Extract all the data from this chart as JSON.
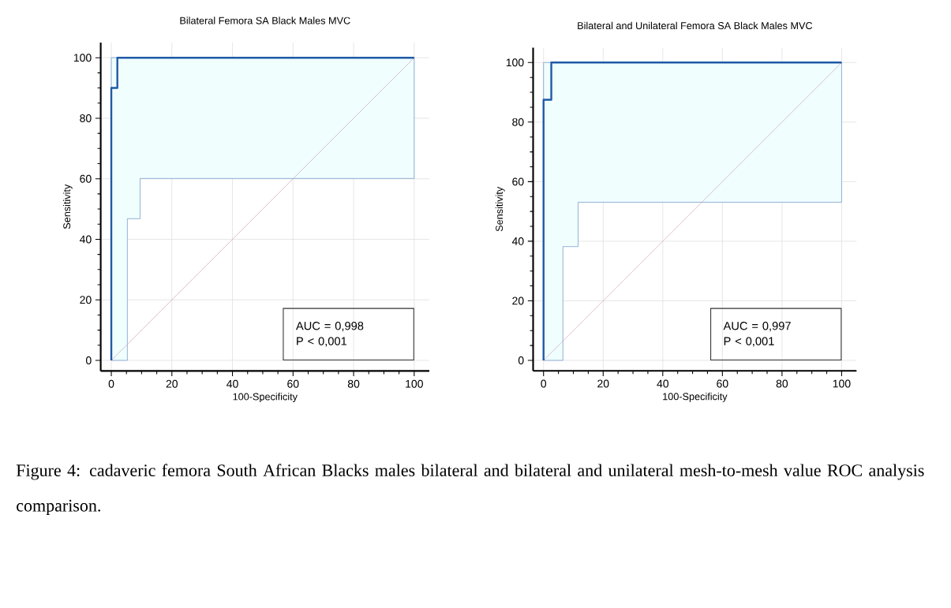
{
  "chart_data": [
    {
      "type": "line",
      "title": "Bilateral Femora SA Black Males MVC",
      "xlabel": "100-Specificity",
      "ylabel": "Sensitivity",
      "xlim": [
        -3.5,
        105
      ],
      "ylim": [
        -3.5,
        105
      ],
      "xticks": [
        0,
        20,
        40,
        60,
        80,
        100
      ],
      "yticks": [
        0,
        20,
        40,
        60,
        80,
        100
      ],
      "grid": true,
      "annotations": [
        "AUC = 0,998",
        "P < 0,001"
      ],
      "series": [
        {
          "color": "#1f5aa6",
          "x": [
            0,
            0,
            2,
            2,
            5.3,
            5.3,
            9.5,
            9.5,
            100
          ],
          "values": [
            0,
            90,
            90,
            100,
            100,
            100,
            100,
            100,
            100
          ],
          "lower": [
            0,
            0,
            0,
            0,
            0,
            46.8,
            46.8,
            60.1,
            60.1
          ],
          "upper": [
            0,
            100,
            100,
            100,
            100,
            100,
            100,
            100,
            100
          ]
        },
        {
          "color": "#c8a2bd",
          "x": [
            0,
            100
          ],
          "values": [
            0,
            100
          ]
        }
      ]
    },
    {
      "type": "line",
      "title": "Bilateral and Unilateral Femora SA Black Males MVC",
      "xlabel": "100-Specificity",
      "ylabel": "Sensitivity",
      "xlim": [
        -3.5,
        105
      ],
      "ylim": [
        -3.5,
        105
      ],
      "xticks": [
        0,
        20,
        40,
        60,
        80,
        100
      ],
      "yticks": [
        0,
        20,
        40,
        60,
        80,
        100
      ],
      "grid": true,
      "annotations": [
        "AUC = 0,997",
        "P < 0,001",
        "Figure 4: cadaveric femora South African Blacks males bilateral and bilateral and unilateral mesh-to-mesh value ROC analysis comparison."
      ],
      "series": [
        {
          "color": "#1f5aa6",
          "x": [
            0,
            0,
            2.6,
            2.6,
            6.5,
            6.5,
            11.6,
            11.6,
            100
          ],
          "values": [
            0,
            87.5,
            87.5,
            100,
            100,
            100,
            100,
            100,
            100
          ],
          "lower": [
            0,
            0,
            0,
            0,
            0,
            38.2,
            38.2,
            53.1,
            53.1
          ],
          "upper": [
            0,
            100,
            100,
            100,
            100,
            100,
            100,
            100,
            100
          ]
        },
        {
          "color": "#c8a2bd",
          "x": [
            0,
            100
          ],
          "values": [
            0,
            100
          ]
        }
      ]
    }
  ]
}
